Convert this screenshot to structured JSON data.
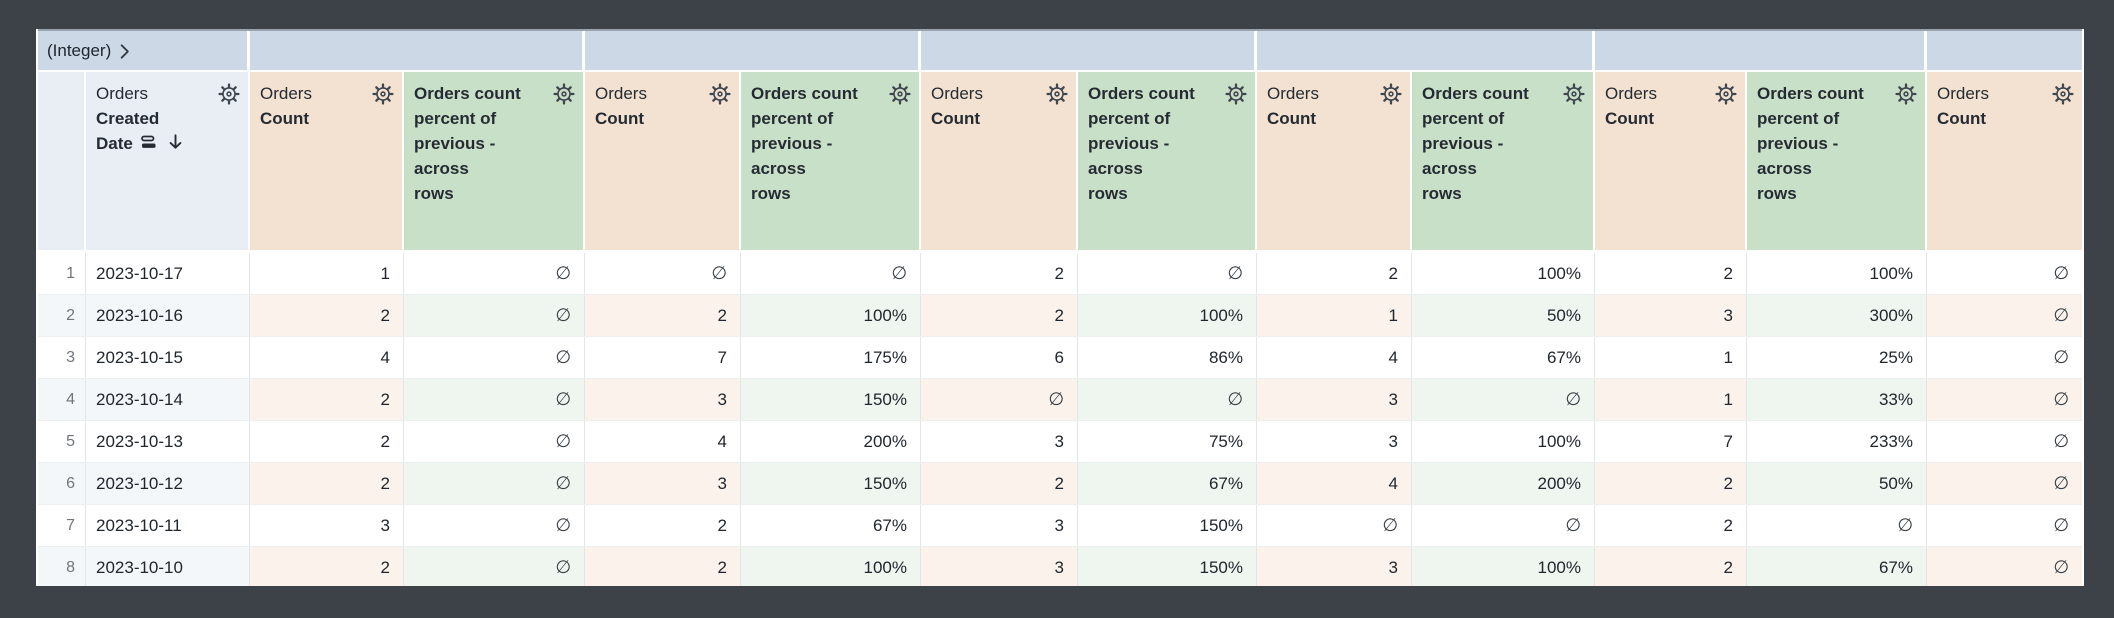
{
  "colors": {
    "surround": "#3c4248",
    "band_bg": "#ccd8e5",
    "header_blue": "#e9eef5",
    "header_peach": "#f3e2d2",
    "header_green": "#c9e0c8",
    "stripe_blue": "#f4f7fa",
    "stripe_peach": "#faf2eb",
    "stripe_green": "#eff6f0",
    "text_dark": "#21262e",
    "row_number_gray": "#70757c"
  },
  "header_band": {
    "label": "(Integer)",
    "chevron_icon": "chevron-right-icon"
  },
  "columns": [
    {
      "id": "row-number",
      "type": "row_number",
      "label": ""
    },
    {
      "id": "orders-created-date",
      "type": "dimension",
      "view_label": "Orders",
      "field_label_lines": [
        "Created",
        "Date"
      ],
      "full_label": "Orders Created Date",
      "icons": [
        "subtotal-icon",
        "sort-desc-arrow-icon",
        "gear-icon"
      ],
      "sort": "descending"
    },
    {
      "id": "orders-count-1",
      "type": "measure",
      "view_label": "Orders",
      "field_label_lines": [
        "Count"
      ],
      "full_label": "Orders Count",
      "icons": [
        "gear-icon"
      ]
    },
    {
      "id": "orders-count-percent-of-previous-1",
      "type": "table_calculation",
      "field_label_lines": [
        "Orders count",
        "percent of",
        "previous -",
        "across",
        "rows"
      ],
      "full_label": "Orders count percent of previous - across rows",
      "icons": [
        "gear-icon"
      ]
    },
    {
      "id": "orders-count-2",
      "type": "measure",
      "view_label": "Orders",
      "field_label_lines": [
        "Count"
      ],
      "full_label": "Orders Count",
      "icons": [
        "gear-icon"
      ]
    },
    {
      "id": "orders-count-percent-of-previous-2",
      "type": "table_calculation",
      "field_label_lines": [
        "Orders count",
        "percent of",
        "previous -",
        "across",
        "rows"
      ],
      "full_label": "Orders count percent of previous - across rows",
      "icons": [
        "gear-icon"
      ]
    },
    {
      "id": "orders-count-3",
      "type": "measure",
      "view_label": "Orders",
      "field_label_lines": [
        "Count"
      ],
      "full_label": "Orders Count",
      "icons": [
        "gear-icon"
      ]
    },
    {
      "id": "orders-count-percent-of-previous-3",
      "type": "table_calculation",
      "field_label_lines": [
        "Orders count",
        "percent of",
        "previous -",
        "across",
        "rows"
      ],
      "full_label": "Orders count percent of previous - across rows",
      "icons": [
        "gear-icon"
      ]
    },
    {
      "id": "orders-count-4",
      "type": "measure",
      "view_label": "Orders",
      "field_label_lines": [
        "Count"
      ],
      "full_label": "Orders Count",
      "icons": [
        "gear-icon"
      ]
    },
    {
      "id": "orders-count-percent-of-previous-4",
      "type": "table_calculation",
      "field_label_lines": [
        "Orders count",
        "percent of",
        "previous -",
        "across",
        "rows"
      ],
      "full_label": "Orders count percent of previous - across rows",
      "icons": [
        "gear-icon"
      ]
    },
    {
      "id": "orders-count-5",
      "type": "measure",
      "view_label": "Orders",
      "field_label_lines": [
        "Count"
      ],
      "full_label": "Orders Count",
      "icons": [
        "gear-icon"
      ]
    },
    {
      "id": "orders-count-percent-of-previous-5",
      "type": "table_calculation",
      "field_label_lines": [
        "Orders count",
        "percent of",
        "previous -",
        "across",
        "rows"
      ],
      "full_label": "Orders count percent of previous - across rows",
      "icons": [
        "gear-icon"
      ]
    },
    {
      "id": "orders-count-6",
      "type": "measure",
      "view_label": "Orders",
      "field_label_lines": [
        "Count"
      ],
      "full_label": "Orders Count",
      "icons": [
        "gear-icon"
      ]
    }
  ],
  "rows": [
    {
      "row_number": "1",
      "date": "2023-10-17",
      "values": [
        "1",
        "∅",
        "∅",
        "∅",
        "2",
        "∅",
        "2",
        "100%",
        "2",
        "100%",
        "∅"
      ]
    },
    {
      "row_number": "2",
      "date": "2023-10-16",
      "values": [
        "2",
        "∅",
        "2",
        "100%",
        "2",
        "100%",
        "1",
        "50%",
        "3",
        "300%",
        "∅"
      ]
    },
    {
      "row_number": "3",
      "date": "2023-10-15",
      "values": [
        "4",
        "∅",
        "7",
        "175%",
        "6",
        "86%",
        "4",
        "67%",
        "1",
        "25%",
        "∅"
      ]
    },
    {
      "row_number": "4",
      "date": "2023-10-14",
      "values": [
        "2",
        "∅",
        "3",
        "150%",
        "∅",
        "∅",
        "3",
        "∅",
        "1",
        "33%",
        "∅"
      ]
    },
    {
      "row_number": "5",
      "date": "2023-10-13",
      "values": [
        "2",
        "∅",
        "4",
        "200%",
        "3",
        "75%",
        "3",
        "100%",
        "7",
        "233%",
        "∅"
      ]
    },
    {
      "row_number": "6",
      "date": "2023-10-12",
      "values": [
        "2",
        "∅",
        "3",
        "150%",
        "2",
        "67%",
        "4",
        "200%",
        "2",
        "50%",
        "∅"
      ]
    },
    {
      "row_number": "7",
      "date": "2023-10-11",
      "values": [
        "3",
        "∅",
        "2",
        "67%",
        "3",
        "150%",
        "∅",
        "∅",
        "2",
        "∅",
        "∅"
      ]
    },
    {
      "row_number": "8",
      "date": "2023-10-10",
      "values": [
        "2",
        "∅",
        "2",
        "100%",
        "3",
        "150%",
        "3",
        "100%",
        "2",
        "67%",
        "∅"
      ]
    }
  ]
}
